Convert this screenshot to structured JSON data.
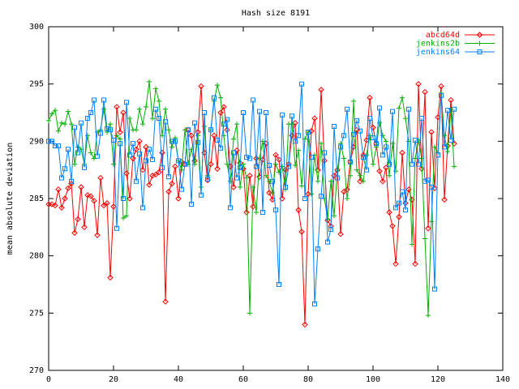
{
  "chart_data": {
    "type": "line",
    "title": "Hash size 8191",
    "y_label": "mean absolute deviation",
    "legend": "top right",
    "x": [
      0,
      1,
      2,
      3,
      4,
      5,
      6,
      7,
      8,
      9,
      10,
      11,
      12,
      13,
      14,
      15,
      16,
      17,
      18,
      19,
      20,
      21,
      22,
      23,
      24,
      25,
      26,
      27,
      28,
      29,
      30,
      31,
      32,
      33,
      34,
      35,
      36,
      37,
      38,
      39,
      40,
      41,
      42,
      43,
      44,
      45,
      46,
      47,
      48,
      49,
      50,
      51,
      52,
      53,
      54,
      55,
      56,
      57,
      58,
      59,
      60,
      61,
      62,
      63,
      64,
      65,
      66,
      67,
      68,
      69,
      70,
      71,
      72,
      73,
      74,
      75,
      76,
      77,
      78,
      79,
      80,
      81,
      82,
      83,
      84,
      85,
      86,
      87,
      88,
      89,
      90,
      91,
      92,
      93,
      94,
      95,
      96,
      97,
      98,
      99,
      100,
      101,
      102,
      103,
      104,
      105,
      106,
      107,
      108,
      109,
      110,
      111,
      112,
      113,
      114,
      115,
      116,
      117,
      118,
      119,
      120,
      121,
      122,
      123,
      124,
      125
    ],
    "series": [
      {
        "name": "abcd64d",
        "color": "#ff0000",
        "marker": "diamond",
        "values": [
          284.5,
          284.5,
          284.4,
          285.8,
          284.2,
          285.0,
          285.9,
          286.3,
          282.0,
          283.2,
          286.0,
          282.5,
          285.3,
          285.2,
          284.8,
          281.8,
          286.8,
          284.4,
          284.6,
          278.1,
          284.3,
          293.0,
          290.8,
          292.5,
          287.2,
          285.0,
          288.5,
          289.3,
          290.0,
          287.5,
          289.5,
          286.2,
          287.0,
          287.1,
          287.3,
          289.0,
          276.0,
          285.6,
          286.3,
          287.8,
          285.0,
          288.2,
          288.0,
          291.0,
          290.5,
          288.3,
          290.8,
          294.8,
          289.0,
          286.6,
          288.0,
          290.5,
          287.6,
          292.5,
          293.0,
          291.0,
          287.8,
          286.0,
          289.2,
          288.1,
          287.6,
          283.8,
          287.0,
          284.3,
          288.5,
          286.9,
          288.4,
          289.8,
          285.5,
          284.9,
          288.8,
          288.4,
          285.0,
          287.5,
          288.0,
          290.5,
          291.6,
          284.0,
          282.1,
          274.0,
          285.4,
          290.9,
          292.0,
          287.5,
          294.5,
          288.3,
          283.1,
          282.6,
          287.0,
          287.5,
          281.9,
          285.6,
          285.8,
          288.2,
          289.5,
          291.0,
          286.5,
          288.8,
          290.1,
          293.8,
          291.2,
          289.8,
          287.4,
          286.5,
          287.7,
          283.8,
          282.6,
          279.3,
          283.4,
          289.0,
          284.6,
          285.8,
          284.9,
          279.3,
          295.0,
          287.6,
          294.3,
          282.4,
          290.8,
          285.9,
          292.1,
          294.8,
          284.9,
          289.6,
          293.6,
          289.8
        ]
      },
      {
        "name": "jenkins2b",
        "color": "#00b000",
        "marker": "plus",
        "values": [
          291.8,
          292.4,
          292.7,
          290.9,
          291.6,
          291.5,
          292.6,
          291.5,
          288.0,
          289.5,
          289.3,
          288.0,
          290.5,
          289.0,
          288.5,
          290.8,
          291.0,
          292.8,
          290.8,
          291.5,
          288.0,
          290.5,
          290.2,
          283.3,
          283.5,
          292.0,
          291.0,
          291.0,
          292.8,
          291.5,
          293.0,
          295.2,
          292.0,
          294.6,
          293.5,
          290.5,
          292.8,
          291.0,
          289.5,
          290.3,
          288.3,
          287.5,
          291.0,
          288.0,
          289.3,
          288.0,
          290.5,
          286.0,
          291.3,
          287.0,
          291.0,
          293.5,
          294.9,
          293.8,
          290.5,
          288.0,
          286.5,
          290.2,
          291.5,
          286.0,
          288.0,
          286.8,
          275.0,
          286.0,
          283.8,
          288.5,
          290.0,
          287.0,
          286.5,
          285.5,
          288.0,
          287.3,
          287.8,
          285.8,
          291.5,
          291.5,
          287.9,
          289.2,
          286.1,
          290.2,
          290.8,
          285.4,
          288.8,
          286.5,
          289.8,
          285.0,
          283.2,
          286.5,
          283.5,
          287.4,
          289.8,
          288.5,
          285.0,
          287.0,
          293.5,
          287.5,
          287.0,
          286.5,
          288.8,
          290.5,
          288.0,
          289.5,
          291.6,
          290.5,
          290.0,
          287.0,
          289.8,
          287.4,
          292.9,
          293.8,
          292.0,
          290.0,
          281.0,
          288.5,
          290.1,
          288.5,
          281.5,
          274.8,
          283.0,
          289.5,
          289.0,
          294.2,
          290.5,
          289.1,
          292.8,
          287.8
        ]
      },
      {
        "name": "jenkins64",
        "color": "#0080ff",
        "marker": "square",
        "values": [
          290.0,
          290.0,
          289.6,
          289.6,
          286.8,
          287.6,
          289.3,
          286.5,
          291.2,
          289.0,
          291.6,
          287.7,
          292.0,
          292.5,
          293.6,
          288.7,
          290.7,
          293.6,
          291.1,
          291.0,
          290.1,
          282.4,
          289.8,
          285.0,
          293.4,
          288.8,
          289.8,
          286.5,
          288.9,
          284.2,
          288.3,
          289.3,
          288.4,
          292.8,
          292.0,
          287.7,
          291.7,
          286.9,
          290.0,
          290.0,
          288.3,
          285.8,
          288.0,
          291.0,
          284.5,
          291.6,
          289.9,
          285.3,
          292.5,
          286.7,
          291.0,
          293.8,
          290.1,
          289.4,
          291.5,
          291.9,
          284.2,
          289.0,
          286.8,
          287.7,
          292.5,
          288.6,
          288.5,
          293.6,
          287.8,
          292.6,
          283.8,
          292.5,
          287.9,
          286.5,
          284.0,
          277.5,
          292.3,
          286.0,
          287.8,
          292.2,
          290.0,
          290.5,
          295.0,
          285.0,
          290.8,
          288.6,
          275.8,
          280.6,
          285.2,
          289.0,
          281.2,
          282.3,
          291.3,
          286.8,
          289.5,
          290.5,
          292.8,
          288.2,
          290.6,
          291.8,
          290.9,
          288.6,
          287.5,
          292.0,
          290.3,
          289.8,
          292.9,
          288.8,
          289.5,
          288.0,
          292.6,
          284.2,
          284.6,
          285.6,
          284.0,
          292.8,
          288.0,
          290.1,
          288.0,
          292.0,
          286.5,
          286.6,
          286.0,
          277.1,
          288.8,
          294.0,
          289.5,
          292.7,
          290.1,
          292.8
        ]
      }
    ],
    "xlim": [
      0,
      140
    ],
    "xticks": [
      0,
      20,
      40,
      60,
      80,
      100,
      120,
      140
    ],
    "ylim": [
      270,
      300
    ],
    "yticks": [
      270,
      275,
      280,
      285,
      290,
      295,
      300
    ]
  }
}
